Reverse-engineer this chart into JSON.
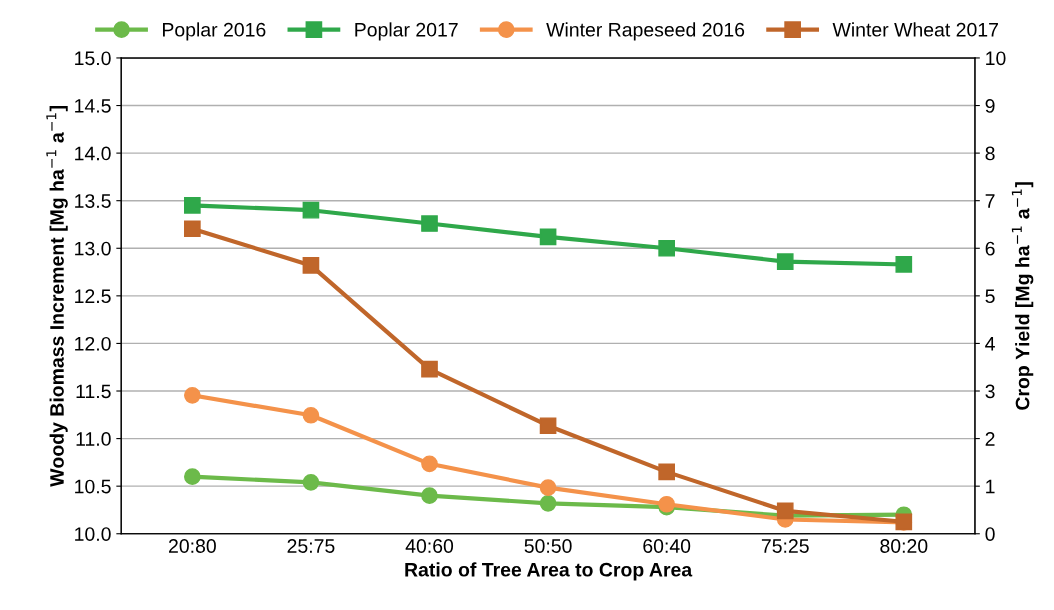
{
  "chart_data": {
    "type": "line",
    "xlabel": "Ratio of Tree Area to Crop Area",
    "ylabel": "Woody Biomass Increment [Mg ha$^{−1}$ a$^{−1}$]",
    "y2label": "Crop Yield [Mg ha$^{−1}$ a$^{−1}$]",
    "categories": [
      "20:80",
      "25:75",
      "40:60",
      "50:50",
      "60:40",
      "75:25",
      "80:20"
    ],
    "series": [
      {
        "name": "Poplar 2016",
        "color": "#6cba4a",
        "marker": "circle",
        "values": [
          10.6,
          10.54,
          10.4,
          10.32,
          10.28,
          10.19,
          10.2
        ]
      },
      {
        "name": "Poplar 2017",
        "color": "#2fa84a",
        "marker": "square",
        "values": [
          13.45,
          13.4,
          13.26,
          13.12,
          13.0,
          12.86,
          12.83
        ]
      },
      {
        "name": "Winter Rapeseed 2016",
        "color": "#f4924a",
        "marker": "circle",
        "axis": "y2",
        "values": [
          2.91,
          2.49,
          1.47,
          0.97,
          0.62,
          0.3,
          0.24
        ]
      },
      {
        "name": "Winter Wheat 2017",
        "color": "#c0662a",
        "marker": "square",
        "axis": "y2",
        "values": [
          6.41,
          5.64,
          3.46,
          2.27,
          1.3,
          0.48,
          0.25
        ]
      }
    ],
    "ylim": [
      10.0,
      15.0
    ],
    "yticks": [
      {
        "value": 10.0,
        "label": "10.0"
      },
      {
        "value": 10.5,
        "label": "10.5"
      },
      {
        "value": 11.0,
        "label": "11.0"
      },
      {
        "value": 11.5,
        "label": "11.5"
      },
      {
        "value": 12.0,
        "label": "12.0"
      },
      {
        "value": 12.5,
        "label": "12.5"
      },
      {
        "value": 13.0,
        "label": "13.0"
      },
      {
        "value": 13.5,
        "label": "13.5"
      },
      {
        "value": 14.0,
        "label": "14.0"
      },
      {
        "value": 14.5,
        "label": "14.5"
      },
      {
        "value": 15.0,
        "label": "15.0"
      }
    ],
    "y2lim": [
      0,
      10
    ],
    "y2ticks": [
      0,
      1,
      2,
      3,
      4,
      5,
      6,
      7,
      8,
      9,
      10
    ],
    "grid": "y",
    "legend": "top"
  }
}
